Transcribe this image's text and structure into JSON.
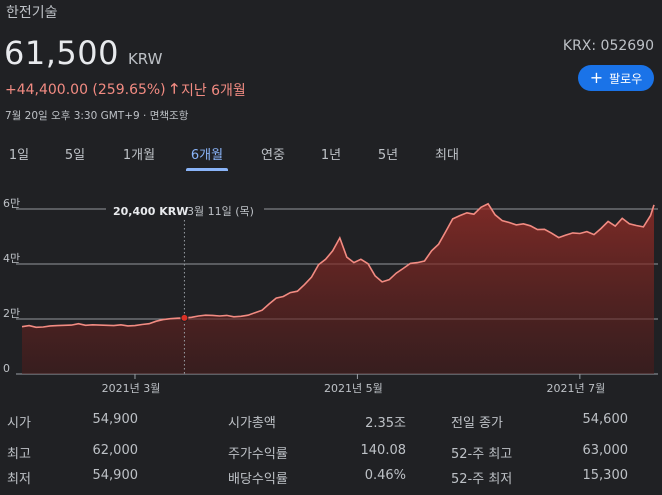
{
  "header": {
    "company_name": "한전기술",
    "price": "61,500",
    "currency": "KRW",
    "change_text": "+44,400.00 (259.65%)",
    "change_arrow": "🡑",
    "change_period": "지난 6개월",
    "exchange_ticker": "KRX: 052690",
    "follow_label": "팔로우",
    "follow_icon": "+",
    "timestamp": "7월 20일 오후 3:30 GMT+9 · 면책조항",
    "up_color": "#f28b82",
    "accent_color": "#1a73e8"
  },
  "tabs": [
    {
      "label": "1일",
      "active": false
    },
    {
      "label": "5일",
      "active": false
    },
    {
      "label": "1개월",
      "active": false
    },
    {
      "label": "6개월",
      "active": true
    },
    {
      "label": "연중",
      "active": false
    },
    {
      "label": "1년",
      "active": false
    },
    {
      "label": "5년",
      "active": false
    },
    {
      "label": "최대",
      "active": false
    }
  ],
  "tooltip": {
    "price": "20,400 KRW",
    "date": "3월 11일 (목)"
  },
  "chart_data": {
    "type": "area",
    "y_tick_labels": [
      "0",
      "2만",
      "4만",
      "6만"
    ],
    "y_ticks": [
      0,
      20000,
      40000,
      60000
    ],
    "ylim": [
      0,
      64000
    ],
    "x_tick_labels": [
      "2021년 3월",
      "2021년 5월",
      "2021년 7월"
    ],
    "x_tick_positions": [
      32,
      95,
      158
    ],
    "xlim": [
      0,
      179
    ],
    "grid": true,
    "line_color": "#f28b82",
    "highlight_point": {
      "x": 46,
      "y": 20400
    },
    "x": [
      0,
      2,
      4,
      6,
      8,
      10,
      12,
      14,
      16,
      18,
      20,
      22,
      24,
      26,
      28,
      30,
      32,
      34,
      36,
      38,
      40,
      42,
      44,
      46,
      48,
      50,
      52,
      54,
      56,
      58,
      60,
      62,
      64,
      66,
      68,
      70,
      72,
      74,
      76,
      78,
      80,
      82,
      84,
      86,
      88,
      90,
      92,
      94,
      96,
      98,
      100,
      102,
      104,
      106,
      108,
      110,
      112,
      114,
      116,
      118,
      120,
      122,
      124,
      126,
      128,
      130,
      132,
      134,
      136,
      138,
      140,
      142,
      144,
      146,
      148,
      150,
      152,
      154,
      156,
      158,
      160,
      162,
      164,
      166,
      168,
      170,
      172,
      174,
      176,
      178,
      179
    ],
    "values": [
      17200,
      17600,
      17000,
      17100,
      17500,
      17600,
      17700,
      17800,
      18300,
      17700,
      17900,
      17800,
      17700,
      17600,
      17900,
      17500,
      17600,
      18000,
      18300,
      19200,
      19800,
      20100,
      20300,
      20400,
      20600,
      21100,
      21400,
      21300,
      21100,
      21300,
      20800,
      21000,
      21400,
      22300,
      23200,
      25500,
      27600,
      28200,
      29600,
      30100,
      32500,
      35200,
      39800,
      41700,
      44800,
      49500,
      42500,
      40500,
      41700,
      40100,
      35700,
      33500,
      34300,
      36700,
      38400,
      40200,
      40500,
      41100,
      44800,
      47200,
      51800,
      56400,
      57600,
      58600,
      58100,
      60600,
      61900,
      57900,
      55800,
      55100,
      54200,
      54600,
      53900,
      52500,
      52600,
      51200,
      49600,
      50500,
      51300,
      51100,
      51800,
      50700,
      52900,
      55500,
      53800,
      56600,
      54600,
      54000,
      53500,
      57600,
      61500
    ]
  },
  "stats": {
    "col1": [
      {
        "label": "시가",
        "value": "54,900"
      },
      {
        "label": "최고",
        "value": "62,000"
      },
      {
        "label": "최저",
        "value": "54,900"
      }
    ],
    "col2": [
      {
        "label": "시가총액",
        "value": "2.35조"
      },
      {
        "label": "주가수익률",
        "value": "140.08"
      },
      {
        "label": "배당수익률",
        "value": "0.46%"
      }
    ],
    "col3": [
      {
        "label": "전일 종가",
        "value": "54,600"
      },
      {
        "label": "52-주 최고",
        "value": "63,000"
      },
      {
        "label": "52-주 최저",
        "value": "15,300"
      }
    ]
  }
}
